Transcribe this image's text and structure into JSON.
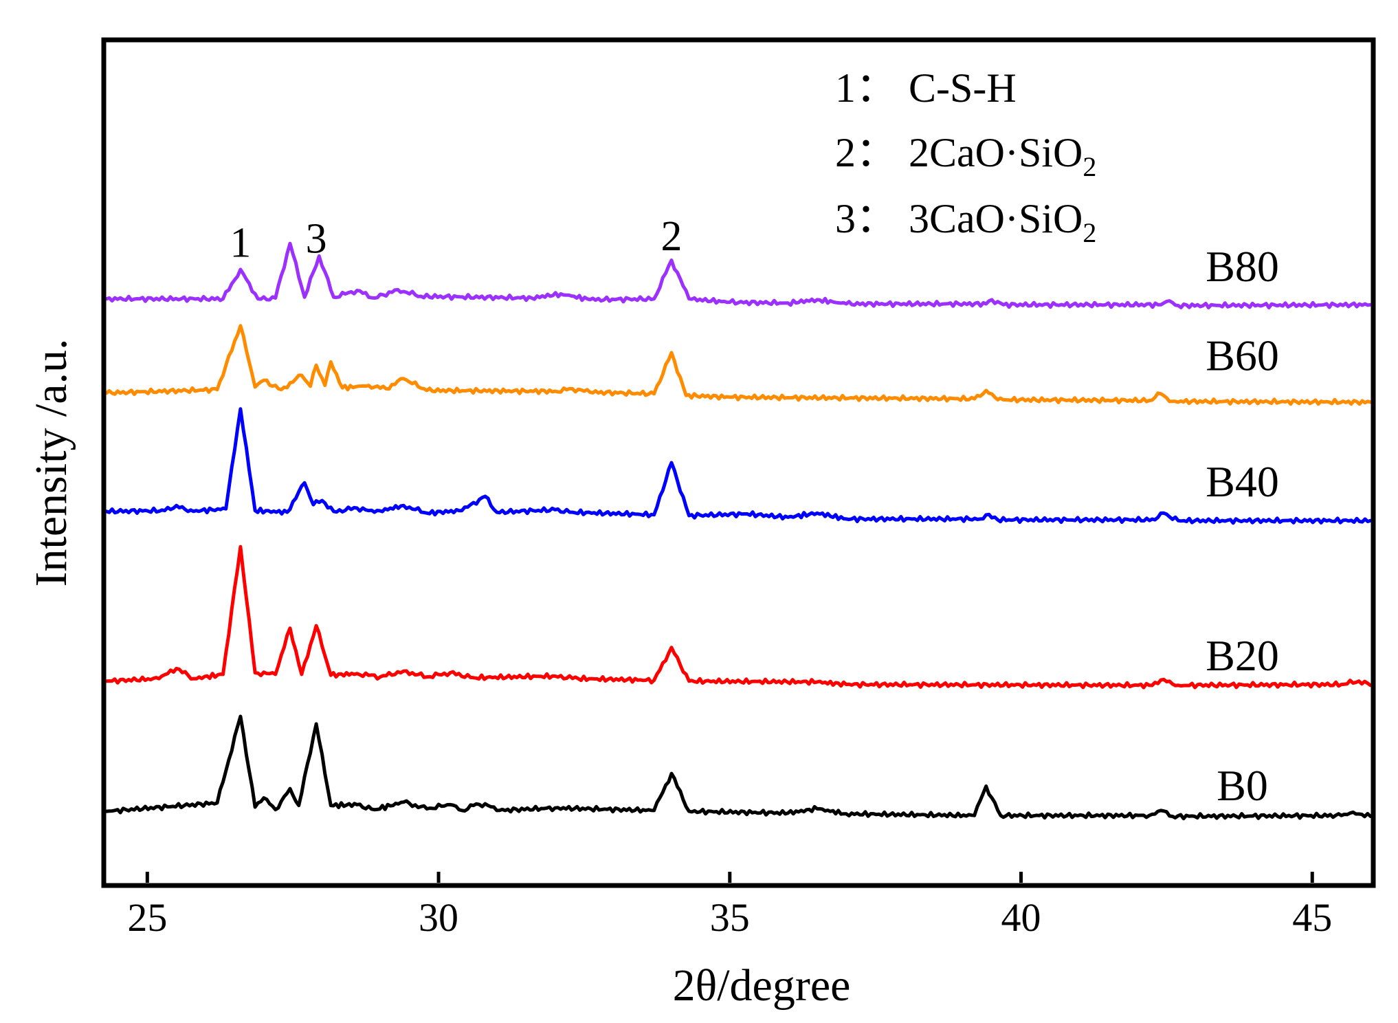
{
  "chart_data": {
    "type": "line",
    "title": "",
    "xlabel": "2θ/degree",
    "ylabel": "Intensity /a.u.",
    "xlim": [
      24.3,
      46
    ],
    "ylim": [
      0,
      100
    ],
    "grid": false,
    "x_ticks": [
      25,
      30,
      35,
      40,
      45
    ],
    "x_tick_labels": [
      "25",
      "30",
      "35",
      "40",
      "45"
    ],
    "legend": {
      "position": "top-right",
      "entries": [
        {
          "index": "1",
          "sep": "：",
          "name": "C-S-H",
          "sub": "",
          "post": ""
        },
        {
          "index": "2",
          "sep": "：",
          "name": "2CaO·SiO",
          "sub": "2",
          "post": ""
        },
        {
          "index": "3",
          "sep": "：",
          "name": "3CaO·SiO",
          "sub": "2",
          "post": ""
        }
      ]
    },
    "peak_markers": [
      {
        "label": "1",
        "x": 26.6,
        "y": 74.5
      },
      {
        "label": "3",
        "x": 27.9,
        "y": 75.0
      },
      {
        "label": "2",
        "x": 34.0,
        "y": 75.3
      }
    ],
    "series": [
      {
        "name": "B80",
        "color": "#9b30ff",
        "label_x": 43.8,
        "label_y": 71.6,
        "points": [
          [
            24.3,
            69.5
          ],
          [
            26.3,
            69.5
          ],
          [
            26.6,
            73.0
          ],
          [
            26.9,
            69.5
          ],
          [
            27.2,
            69.6
          ],
          [
            27.45,
            76.1
          ],
          [
            27.7,
            69.7
          ],
          [
            27.95,
            74.6
          ],
          [
            28.2,
            69.7
          ],
          [
            28.6,
            70.5
          ],
          [
            28.9,
            69.6
          ],
          [
            29.3,
            70.6
          ],
          [
            29.7,
            69.8
          ],
          [
            31.6,
            69.6
          ],
          [
            32.1,
            70.1
          ],
          [
            32.6,
            69.4
          ],
          [
            33.7,
            69.5
          ],
          [
            34.0,
            74.1
          ],
          [
            34.3,
            69.5
          ],
          [
            35.0,
            69.1
          ],
          [
            36.0,
            69.0
          ],
          [
            36.5,
            69.4
          ],
          [
            37.0,
            68.9
          ],
          [
            39.4,
            68.9
          ],
          [
            39.5,
            69.4
          ],
          [
            39.7,
            68.8
          ],
          [
            42.4,
            68.8
          ],
          [
            42.5,
            69.2
          ],
          [
            42.7,
            68.7
          ],
          [
            46.0,
            68.8
          ]
        ]
      },
      {
        "name": "B60",
        "color": "#ff8c00",
        "label_x": 43.8,
        "label_y": 61.0,
        "points": [
          [
            24.3,
            58.3
          ],
          [
            26.2,
            58.7
          ],
          [
            26.6,
            66.3
          ],
          [
            26.85,
            59.0
          ],
          [
            27.0,
            59.8
          ],
          [
            27.3,
            58.7
          ],
          [
            27.65,
            60.4
          ],
          [
            27.8,
            59.1
          ],
          [
            27.9,
            61.6
          ],
          [
            28.05,
            59.2
          ],
          [
            28.15,
            62.0
          ],
          [
            28.35,
            58.9
          ],
          [
            28.8,
            59.2
          ],
          [
            29.1,
            58.8
          ],
          [
            29.4,
            60.0
          ],
          [
            29.8,
            58.6
          ],
          [
            32.0,
            58.5
          ],
          [
            32.3,
            58.8
          ],
          [
            32.6,
            58.4
          ],
          [
            33.7,
            58.2
          ],
          [
            34.0,
            63.1
          ],
          [
            34.25,
            58.0
          ],
          [
            35.0,
            57.8
          ],
          [
            39.2,
            57.6
          ],
          [
            39.4,
            58.6
          ],
          [
            39.6,
            57.5
          ],
          [
            42.2,
            57.4
          ],
          [
            42.4,
            58.2
          ],
          [
            42.6,
            57.3
          ],
          [
            46.0,
            57.2
          ]
        ]
      },
      {
        "name": "B40",
        "color": "#0000ff",
        "label_x": 43.8,
        "label_y": 46.0,
        "points": [
          [
            24.3,
            44.2
          ],
          [
            25.3,
            44.3
          ],
          [
            25.5,
            44.9
          ],
          [
            25.7,
            44.2
          ],
          [
            26.35,
            44.5
          ],
          [
            26.6,
            56.4
          ],
          [
            26.85,
            44.3
          ],
          [
            27.4,
            44.1
          ],
          [
            27.7,
            47.6
          ],
          [
            27.85,
            45.0
          ],
          [
            28.0,
            45.5
          ],
          [
            28.2,
            44.2
          ],
          [
            28.6,
            44.6
          ],
          [
            28.9,
            44.1
          ],
          [
            29.4,
            44.9
          ],
          [
            29.8,
            44.0
          ],
          [
            30.4,
            44.3
          ],
          [
            30.8,
            46.0
          ],
          [
            31.0,
            44.1
          ],
          [
            32.0,
            44.4
          ],
          [
            32.3,
            44.1
          ],
          [
            33.7,
            43.8
          ],
          [
            34.0,
            50.0
          ],
          [
            34.3,
            43.7
          ],
          [
            35.3,
            43.9
          ],
          [
            36.0,
            43.5
          ],
          [
            36.5,
            44.0
          ],
          [
            37.0,
            43.3
          ],
          [
            39.3,
            43.3
          ],
          [
            39.4,
            43.8
          ],
          [
            39.6,
            43.2
          ],
          [
            42.3,
            43.2
          ],
          [
            42.45,
            44.0
          ],
          [
            42.7,
            43.1
          ],
          [
            46.0,
            43.1
          ]
        ]
      },
      {
        "name": "B20",
        "color": "#ff0000",
        "label_x": 43.8,
        "label_y": 25.3,
        "points": [
          [
            24.3,
            24.0
          ],
          [
            25.2,
            24.3
          ],
          [
            25.5,
            25.5
          ],
          [
            25.8,
            24.3
          ],
          [
            26.3,
            24.8
          ],
          [
            26.6,
            40.0
          ],
          [
            26.85,
            25.0
          ],
          [
            27.2,
            24.8
          ],
          [
            27.45,
            30.3
          ],
          [
            27.65,
            24.8
          ],
          [
            27.9,
            30.6
          ],
          [
            28.15,
            24.7
          ],
          [
            28.6,
            24.9
          ],
          [
            29.0,
            24.5
          ],
          [
            29.4,
            25.2
          ],
          [
            29.8,
            24.5
          ],
          [
            30.2,
            25.0
          ],
          [
            30.6,
            24.4
          ],
          [
            32.0,
            24.6
          ],
          [
            32.4,
            24.3
          ],
          [
            33.7,
            24.1
          ],
          [
            34.0,
            28.0
          ],
          [
            34.3,
            24.0
          ],
          [
            36.5,
            23.9
          ],
          [
            37.0,
            23.6
          ],
          [
            42.2,
            23.5
          ],
          [
            42.45,
            24.2
          ],
          [
            42.7,
            23.5
          ],
          [
            45.5,
            23.6
          ],
          [
            45.8,
            24.0
          ],
          [
            46.0,
            23.5
          ]
        ]
      },
      {
        "name": "B0",
        "color": "#000000",
        "label_x": 43.8,
        "label_y": 9.8,
        "points": [
          [
            24.3,
            8.5
          ],
          [
            26.2,
            9.5
          ],
          [
            26.6,
            19.8
          ],
          [
            26.85,
            9.0
          ],
          [
            27.0,
            10.1
          ],
          [
            27.2,
            8.7
          ],
          [
            27.45,
            11.2
          ],
          [
            27.6,
            9.2
          ],
          [
            27.9,
            18.9
          ],
          [
            28.15,
            9.2
          ],
          [
            28.6,
            9.3
          ],
          [
            28.9,
            8.7
          ],
          [
            29.4,
            9.6
          ],
          [
            29.8,
            8.8
          ],
          [
            30.2,
            9.3
          ],
          [
            30.4,
            8.6
          ],
          [
            30.6,
            9.2
          ],
          [
            30.8,
            9.4
          ],
          [
            31.0,
            8.6
          ],
          [
            32.0,
            8.9
          ],
          [
            33.7,
            8.6
          ],
          [
            34.0,
            13.0
          ],
          [
            34.3,
            8.5
          ],
          [
            36.0,
            8.3
          ],
          [
            36.5,
            8.8
          ],
          [
            37.0,
            8.2
          ],
          [
            39.2,
            8.0
          ],
          [
            39.4,
            11.5
          ],
          [
            39.65,
            8.0
          ],
          [
            42.2,
            8.0
          ],
          [
            42.4,
            8.6
          ],
          [
            42.6,
            7.9
          ],
          [
            45.5,
            8.0
          ],
          [
            45.7,
            8.4
          ],
          [
            46.0,
            7.9
          ]
        ]
      }
    ]
  }
}
